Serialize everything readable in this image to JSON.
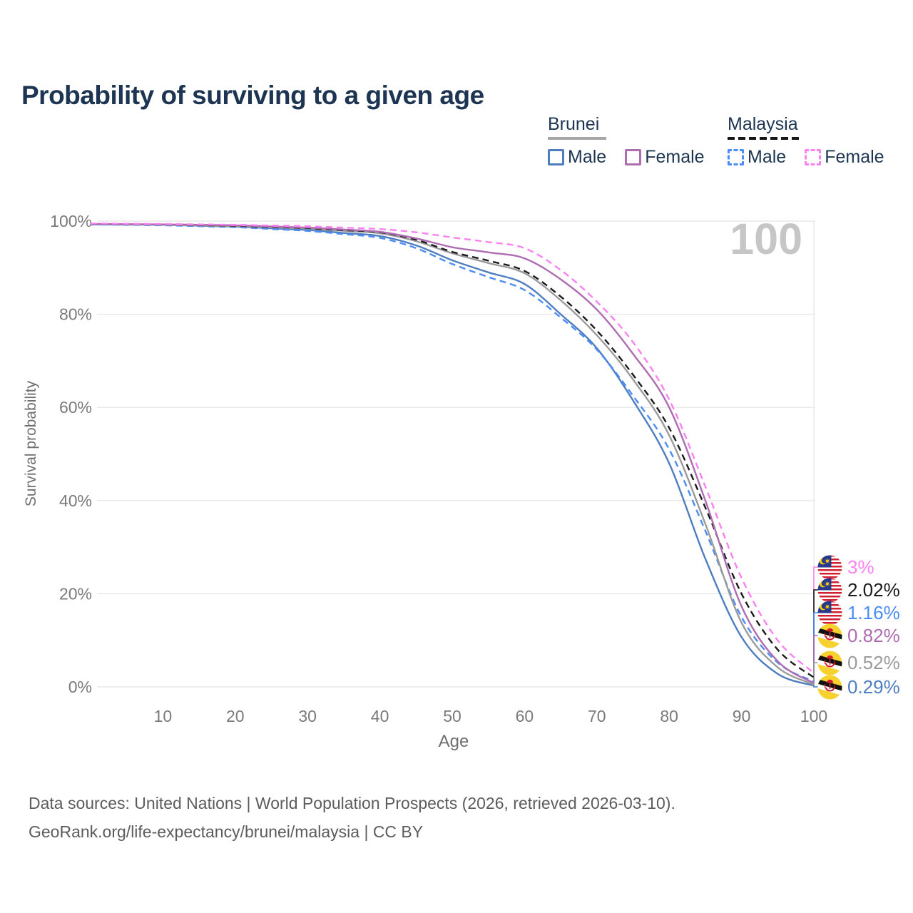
{
  "title": "Probability of surviving to a given age",
  "watermark": "100",
  "legend": {
    "brunei": {
      "label": "Brunei"
    },
    "malaysia": {
      "label": "Malaysia"
    },
    "male_label": "Male",
    "female_label": "Female"
  },
  "footer": {
    "line1": "Data sources: United Nations | World Population Prospects (2026, retrieved 2026-03-10).",
    "line2": "GeoRank.org/life-expectancy/brunei/malaysia | CC BY"
  },
  "chart_data": {
    "type": "line",
    "title": "Probability of surviving to a given age",
    "xlabel": "Age",
    "ylabel": "Survival probability",
    "xlim": [
      0,
      100
    ],
    "ylim": [
      0,
      100
    ],
    "x_ticks": [
      10,
      20,
      30,
      40,
      50,
      60,
      70,
      80,
      90,
      100
    ],
    "y_ticks": [
      0,
      20,
      40,
      60,
      80,
      100
    ],
    "y_tick_suffix": "%",
    "grid": "horizontal",
    "legend_position": "top-right",
    "ages": [
      0,
      5,
      10,
      15,
      20,
      25,
      30,
      35,
      40,
      45,
      50,
      55,
      60,
      65,
      70,
      75,
      80,
      85,
      90,
      95,
      100
    ],
    "series": [
      {
        "name": "Brunei Male",
        "country": "Brunei",
        "sex": "Male",
        "color": "#4e7dc0",
        "dash": false,
        "end_label": "0.29%",
        "end_value": 0.29,
        "values": [
          99.3,
          99.25,
          99.2,
          99.0,
          98.8,
          98.45,
          98.1,
          97.45,
          96.8,
          94.8,
          91.6,
          89.0,
          86.5,
          80.0,
          72.7,
          61.5,
          48.0,
          27.5,
          10.7,
          2.8,
          0.29
        ]
      },
      {
        "name": "Malaysia Male",
        "country": "Malaysia",
        "sex": "Male",
        "color": "#4b8cf7",
        "dash": true,
        "end_label": "1.16%",
        "end_value": 1.16,
        "values": [
          99.3,
          99.2,
          99.1,
          98.9,
          98.7,
          98.3,
          97.9,
          97.2,
          96.4,
          94.2,
          90.8,
          88.0,
          85.2,
          79.3,
          72.4,
          62.5,
          51.0,
          33.5,
          15.0,
          5.2,
          1.16
        ]
      },
      {
        "name": "Brunei",
        "country": "Brunei",
        "sex": "Both",
        "color": "#9b9b9b",
        "dash": false,
        "end_label": "0.52%",
        "end_value": 0.52,
        "values": [
          99.4,
          99.3,
          99.2,
          99.05,
          98.9,
          98.65,
          98.4,
          97.9,
          97.4,
          95.7,
          93.1,
          91.0,
          88.8,
          83.0,
          75.5,
          66.0,
          54.0,
          35.0,
          13.8,
          4.2,
          0.52
        ]
      },
      {
        "name": "Malaysia",
        "country": "Malaysia",
        "sex": "Both",
        "color": "#1a1a1a",
        "dash": true,
        "end_label": "2.02%",
        "end_value": 2.02,
        "values": [
          99.4,
          99.35,
          99.3,
          99.15,
          99.0,
          98.75,
          98.5,
          98.05,
          97.6,
          96.0,
          93.4,
          91.5,
          89.3,
          83.8,
          76.5,
          67.0,
          55.6,
          38.5,
          20.0,
          8.0,
          2.02
        ]
      },
      {
        "name": "Brunei Female",
        "country": "Brunei",
        "sex": "Female",
        "color": "#ae6cb1",
        "dash": false,
        "end_label": "0.82%",
        "end_value": 0.82,
        "values": [
          99.4,
          99.35,
          99.3,
          99.2,
          99.1,
          98.85,
          98.6,
          98.2,
          97.7,
          96.3,
          94.4,
          93.3,
          92.0,
          87.5,
          81.0,
          71.5,
          60.0,
          40.0,
          17.3,
          5.5,
          0.82
        ]
      },
      {
        "name": "Malaysia Female",
        "country": "Malaysia",
        "sex": "Female",
        "color": "#fb80f1",
        "dash": true,
        "end_label": "3%",
        "end_value": 3.0,
        "values": [
          99.5,
          99.45,
          99.4,
          99.3,
          99.2,
          99.05,
          98.9,
          98.6,
          98.3,
          97.6,
          96.5,
          95.5,
          94.2,
          89.5,
          82.7,
          74.0,
          61.7,
          43.0,
          23.4,
          10.0,
          3.0
        ]
      }
    ],
    "end_labels": [
      {
        "series": "Malaysia Female",
        "flag": "malaysia",
        "text": "3%",
        "value": 3.0,
        "color": "#fb80f1"
      },
      {
        "series": "Malaysia",
        "flag": "malaysia",
        "text": "2.02%",
        "value": 2.02,
        "color": "#1a1a1a"
      },
      {
        "series": "Malaysia Male",
        "flag": "malaysia",
        "text": "1.16%",
        "value": 1.16,
        "color": "#4b8cf7"
      },
      {
        "series": "Brunei Female",
        "flag": "brunei",
        "text": "0.82%",
        "value": 0.82,
        "color": "#ae6cb1"
      },
      {
        "series": "Brunei",
        "flag": "brunei",
        "text": "0.52%",
        "value": 0.52,
        "color": "#9b9b9b"
      },
      {
        "series": "Brunei Male",
        "flag": "brunei",
        "text": "0.29%",
        "value": 0.29,
        "color": "#4e7dc0"
      }
    ]
  },
  "colors": {
    "title_text": "#1d3552",
    "grid": "#e8e8e8",
    "axis_text": "#7a7a7a",
    "watermark": "#c6c6c6",
    "footer_text": "#5c5c5c",
    "brunei_male": "#4e7dc0",
    "brunei_female": "#ae6cb1",
    "brunei_total": "#9b9b9b",
    "malaysia_male": "#4b8cf7",
    "malaysia_female": "#fb80f1",
    "malaysia_total": "#1a1a1a"
  }
}
